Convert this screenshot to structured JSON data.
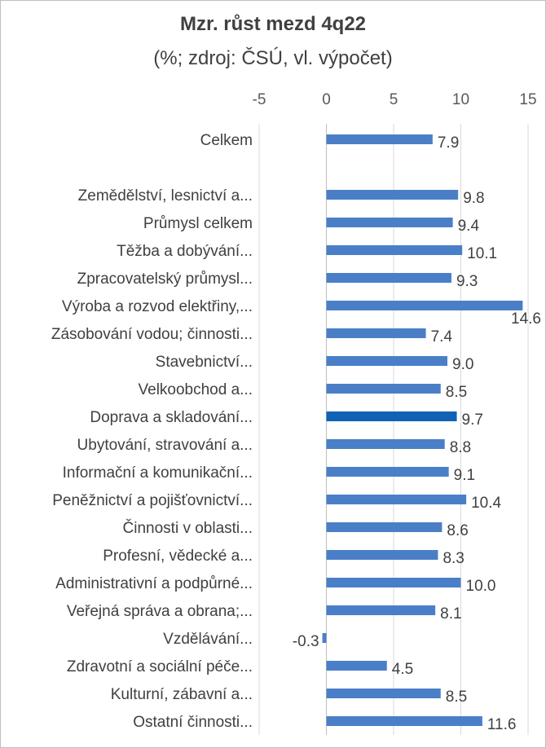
{
  "chart_data": {
    "type": "bar",
    "orientation": "horizontal",
    "title": "Mzr. růst mezd 4q22",
    "subtitle": "(%; zdroj: ČSÚ, vl. výpočet)",
    "xlim": [
      -5,
      15
    ],
    "xticks": [
      "-5",
      "0",
      "5",
      "10",
      "15"
    ],
    "xtick_values": [
      -5,
      0,
      5,
      10,
      15
    ],
    "grid": true,
    "categories": [
      "Celkem",
      "",
      "Zemědělství, lesnictví a...",
      "Průmysl celkem",
      "Těžba a dobývání...",
      "Zpracovatelský průmysl...",
      "Výroba a rozvod elektřiny,...",
      "Zásobování vodou; činnosti...",
      "Stavebnictví...",
      "Velkoobchod a...",
      "Doprava a skladování...",
      "Ubytování, stravování a...",
      "Informační a komunikační...",
      "Peněžnictví a pojišťovnictví...",
      "Činnosti v oblasti...",
      "Profesní, vědecké a...",
      "Administrativní a podpůrné...",
      "Veřejná správa a obrana;...",
      "Vzdělávání...",
      "Zdravotní a sociální péče...",
      "Kulturní, zábavní a...",
      "Ostatní činnosti..."
    ],
    "values": [
      7.9,
      null,
      9.8,
      9.4,
      10.1,
      9.3,
      14.6,
      7.4,
      9.0,
      8.5,
      9.7,
      8.8,
      9.1,
      10.4,
      8.6,
      8.3,
      10.0,
      8.1,
      -0.3,
      4.5,
      8.5,
      11.6
    ],
    "value_labels": [
      "7.9",
      "",
      "9.8",
      "9.4",
      "10.1",
      "9.3",
      "14.6",
      "7.4",
      "9.0",
      "8.5",
      "9.7",
      "8.8",
      "9.1",
      "10.4",
      "8.6",
      "8.3",
      "10.0",
      "8.1",
      "-0.3",
      "4.5",
      "8.5",
      "11.6"
    ],
    "highlight_index": 10,
    "colors": {
      "bar": "#4a7fc8",
      "highlight": "#0f62b5",
      "grid": "#d9d9d9",
      "axis": "#bfbfbf"
    }
  }
}
